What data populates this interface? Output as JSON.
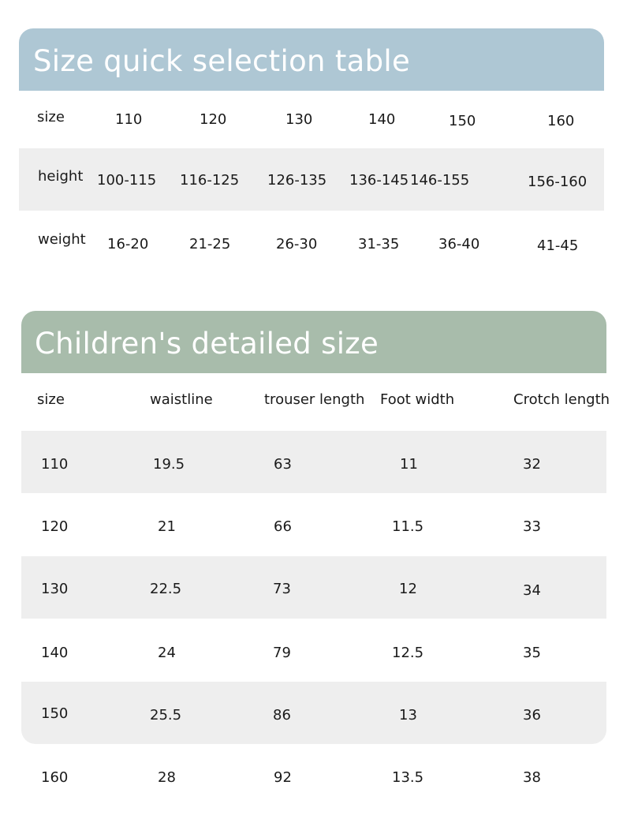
{
  "quick": {
    "title": "Size quick selection table",
    "rows": [
      {
        "label": "size",
        "values": [
          "110",
          "120",
          "130",
          "140",
          "150",
          "160"
        ]
      },
      {
        "label": "height",
        "values": [
          "100-115",
          "116-125",
          "126-135",
          "136-145",
          "146-155",
          "156-160"
        ]
      },
      {
        "label": "weight",
        "values": [
          "16-20",
          "21-25",
          "26-30",
          "31-35",
          "36-40",
          "41-45"
        ]
      }
    ]
  },
  "detail": {
    "title": "Children's detailed size",
    "headers": [
      "size",
      "waistline",
      "trouser length",
      "Foot width",
      "Crotch length"
    ],
    "rows": [
      [
        "110",
        "19.5",
        "63",
        "11",
        "32"
      ],
      [
        "120",
        "21",
        "66",
        "11.5",
        "33"
      ],
      [
        "130",
        "22.5",
        "73",
        "12",
        "34"
      ],
      [
        "140",
        "24",
        "79",
        "12.5",
        "35"
      ],
      [
        "150",
        "25.5",
        "86",
        "13",
        "36"
      ],
      [
        "160",
        "28",
        "92",
        "13.5",
        "38"
      ]
    ]
  },
  "colors": {
    "quick_header": "#aec7d4",
    "detail_header": "#a8bcab",
    "band": "#eeeeee"
  }
}
